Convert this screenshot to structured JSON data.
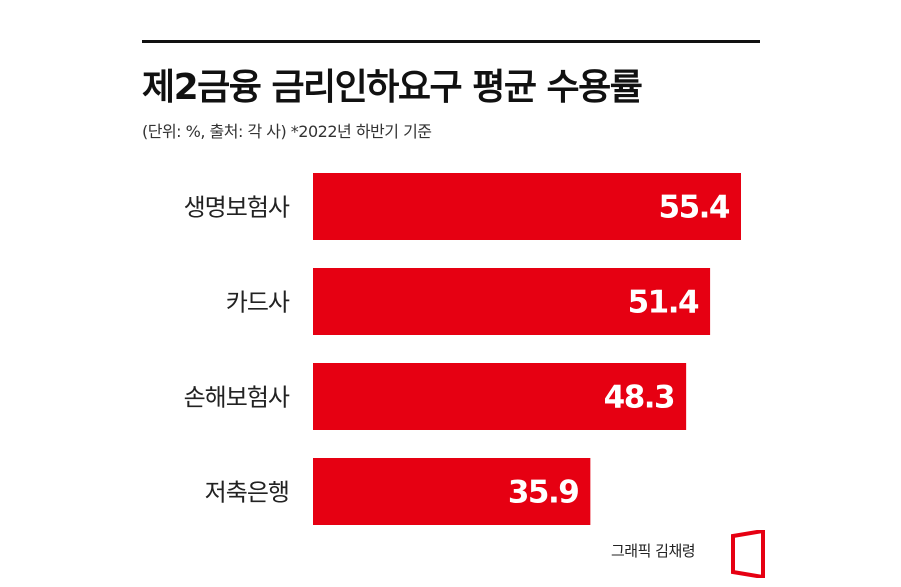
{
  "header": {
    "title": "제2금융 금리인하요구 평균 수용률",
    "subtitle": "(단위: %, 출처: 각 사)  *2022년 하반기 기준"
  },
  "footer": {
    "credit": "그래픽 김채령",
    "logo_icon": "publisher-logo-icon"
  },
  "colors": {
    "bar": "#E60012",
    "bar_label": "#FFFFFF",
    "rule": "#111111"
  },
  "chart_data": {
    "type": "bar",
    "orientation": "horizontal",
    "categories": [
      "생명보험사",
      "카드사",
      "손해보험사",
      "저축은행"
    ],
    "values": [
      55.4,
      51.4,
      48.3,
      35.9
    ],
    "title": "제2금융 금리인하요구 평균 수용률",
    "xlabel": "",
    "ylabel": "",
    "unit": "%",
    "xlim": [
      0,
      55.4
    ],
    "grid": false,
    "legend": "none",
    "data_labels": "inside-end"
  }
}
